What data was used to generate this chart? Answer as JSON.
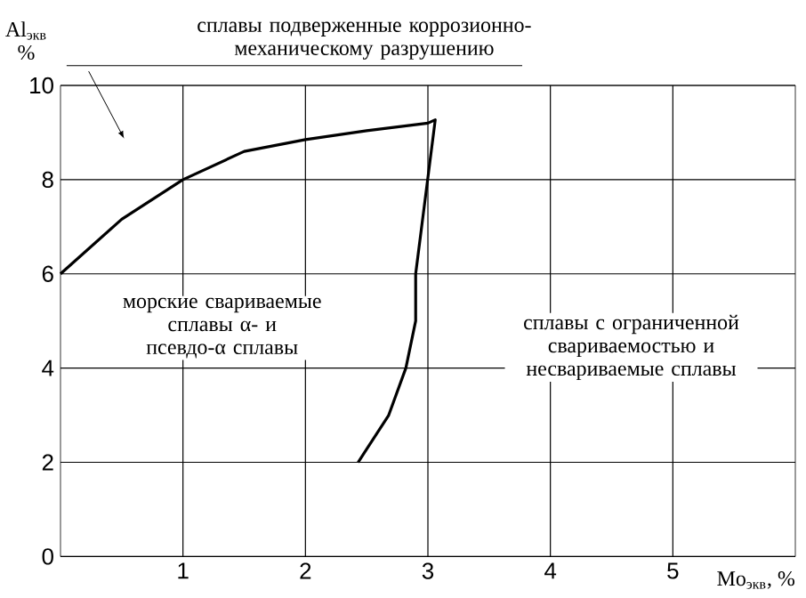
{
  "chart_data": {
    "type": "line",
    "xlabel": "Mo$_{экв}$, %",
    "ylabel": "Al$_{экв}$ %",
    "series": [
      {
        "color": "#000000",
        "x": [
          0,
          0.5,
          1,
          1.5,
          2,
          2.5,
          3,
          3.06,
          2.9,
          2.9,
          2.82,
          2.68,
          2.43
        ],
        "values": [
          6,
          7.16,
          8,
          8.6,
          8.85,
          9.04,
          9.2,
          9.27,
          6,
          5,
          4,
          3,
          2
        ]
      }
    ],
    "xlim": [
      0,
      6
    ],
    "ylim": [
      0,
      10
    ],
    "xticks": [
      1,
      2,
      3,
      4,
      5
    ],
    "yticks": [
      0,
      2,
      4,
      6,
      8,
      10
    ],
    "grid": true,
    "marker": "none",
    "line_style": "solid",
    "annotations": [
      "сплавы подверженные коррозионно-механическому разрушению",
      "морские свариваемые сплавы α- и псевдо-α сплавы",
      "сплавы с ограниченной свариваемостью и несвариваемые сплавы"
    ]
  }
}
